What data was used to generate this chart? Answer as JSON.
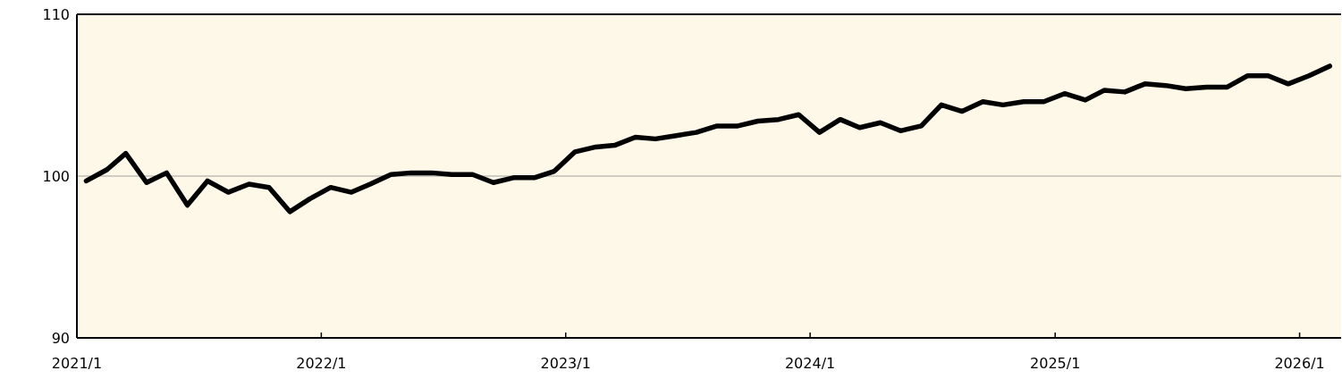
{
  "chart_data": {
    "type": "line",
    "x": [
      "2021-01-15",
      "2021-02-15",
      "2021-03-15",
      "2021-04-15",
      "2021-05-15",
      "2021-06-15",
      "2021-07-15",
      "2021-08-15",
      "2021-09-15",
      "2021-10-15",
      "2021-11-15",
      "2021-12-15",
      "2022-01-15",
      "2022-02-15",
      "2022-03-15",
      "2022-04-15",
      "2022-05-15",
      "2022-06-15",
      "2022-07-15",
      "2022-08-15",
      "2022-09-15",
      "2022-10-15",
      "2022-11-15",
      "2022-12-15",
      "2023-01-15",
      "2023-02-15",
      "2023-03-15",
      "2023-04-15",
      "2023-05-15",
      "2023-06-15",
      "2023-07-15",
      "2023-08-15",
      "2023-09-15",
      "2023-10-15",
      "2023-11-15",
      "2023-12-15",
      "2024-01-15",
      "2024-02-15",
      "2024-03-15",
      "2024-04-15",
      "2024-05-15",
      "2024-06-15",
      "2024-07-15",
      "2024-08-15",
      "2024-09-15",
      "2024-10-15",
      "2024-11-15",
      "2024-12-15",
      "2025-01-15",
      "2025-02-15",
      "2025-03-15",
      "2025-04-15",
      "2025-05-15",
      "2025-06-15",
      "2025-07-15",
      "2025-08-15",
      "2025-09-15",
      "2025-10-15",
      "2025-11-15",
      "2025-12-15",
      "2026-01-15",
      "2026-02-15"
    ],
    "series": [
      {
        "color": "#000000",
        "values": [
          99.7,
          100.4,
          101.4,
          99.6,
          100.2,
          98.2,
          99.7,
          99.0,
          99.5,
          99.3,
          97.8,
          98.6,
          99.3,
          99.0,
          99.5,
          100.1,
          100.2,
          100.2,
          100.1,
          100.1,
          99.6,
          99.9,
          99.9,
          100.3,
          101.5,
          101.8,
          101.9,
          102.4,
          102.3,
          102.5,
          102.7,
          103.1,
          103.1,
          103.4,
          103.5,
          103.8,
          102.7,
          103.5,
          103.0,
          103.3,
          102.8,
          103.1,
          104.4,
          104.0,
          104.6,
          104.4,
          104.6,
          104.6,
          105.1,
          104.7,
          105.3,
          105.2,
          105.7,
          105.6,
          105.4,
          105.5,
          105.5,
          106.2,
          106.2,
          105.7,
          106.2,
          106.8
        ]
      }
    ],
    "xlim": [
      "2021-01-01",
      "2026-03-04"
    ],
    "xticks": [
      {
        "value": "2021-01-01",
        "label": "2021/1"
      },
      {
        "value": "2022-01-01",
        "label": "2022/1"
      },
      {
        "value": "2023-01-01",
        "label": "2023/1"
      },
      {
        "value": "2024-01-01",
        "label": "2024/1"
      },
      {
        "value": "2025-01-01",
        "label": "2025/1"
      },
      {
        "value": "2026-01-01",
        "label": "2026/1"
      }
    ],
    "ylim": [
      90,
      110
    ],
    "yticks": [
      90,
      100,
      110
    ],
    "grid": "y",
    "marker": "none",
    "line_style": "solid"
  }
}
